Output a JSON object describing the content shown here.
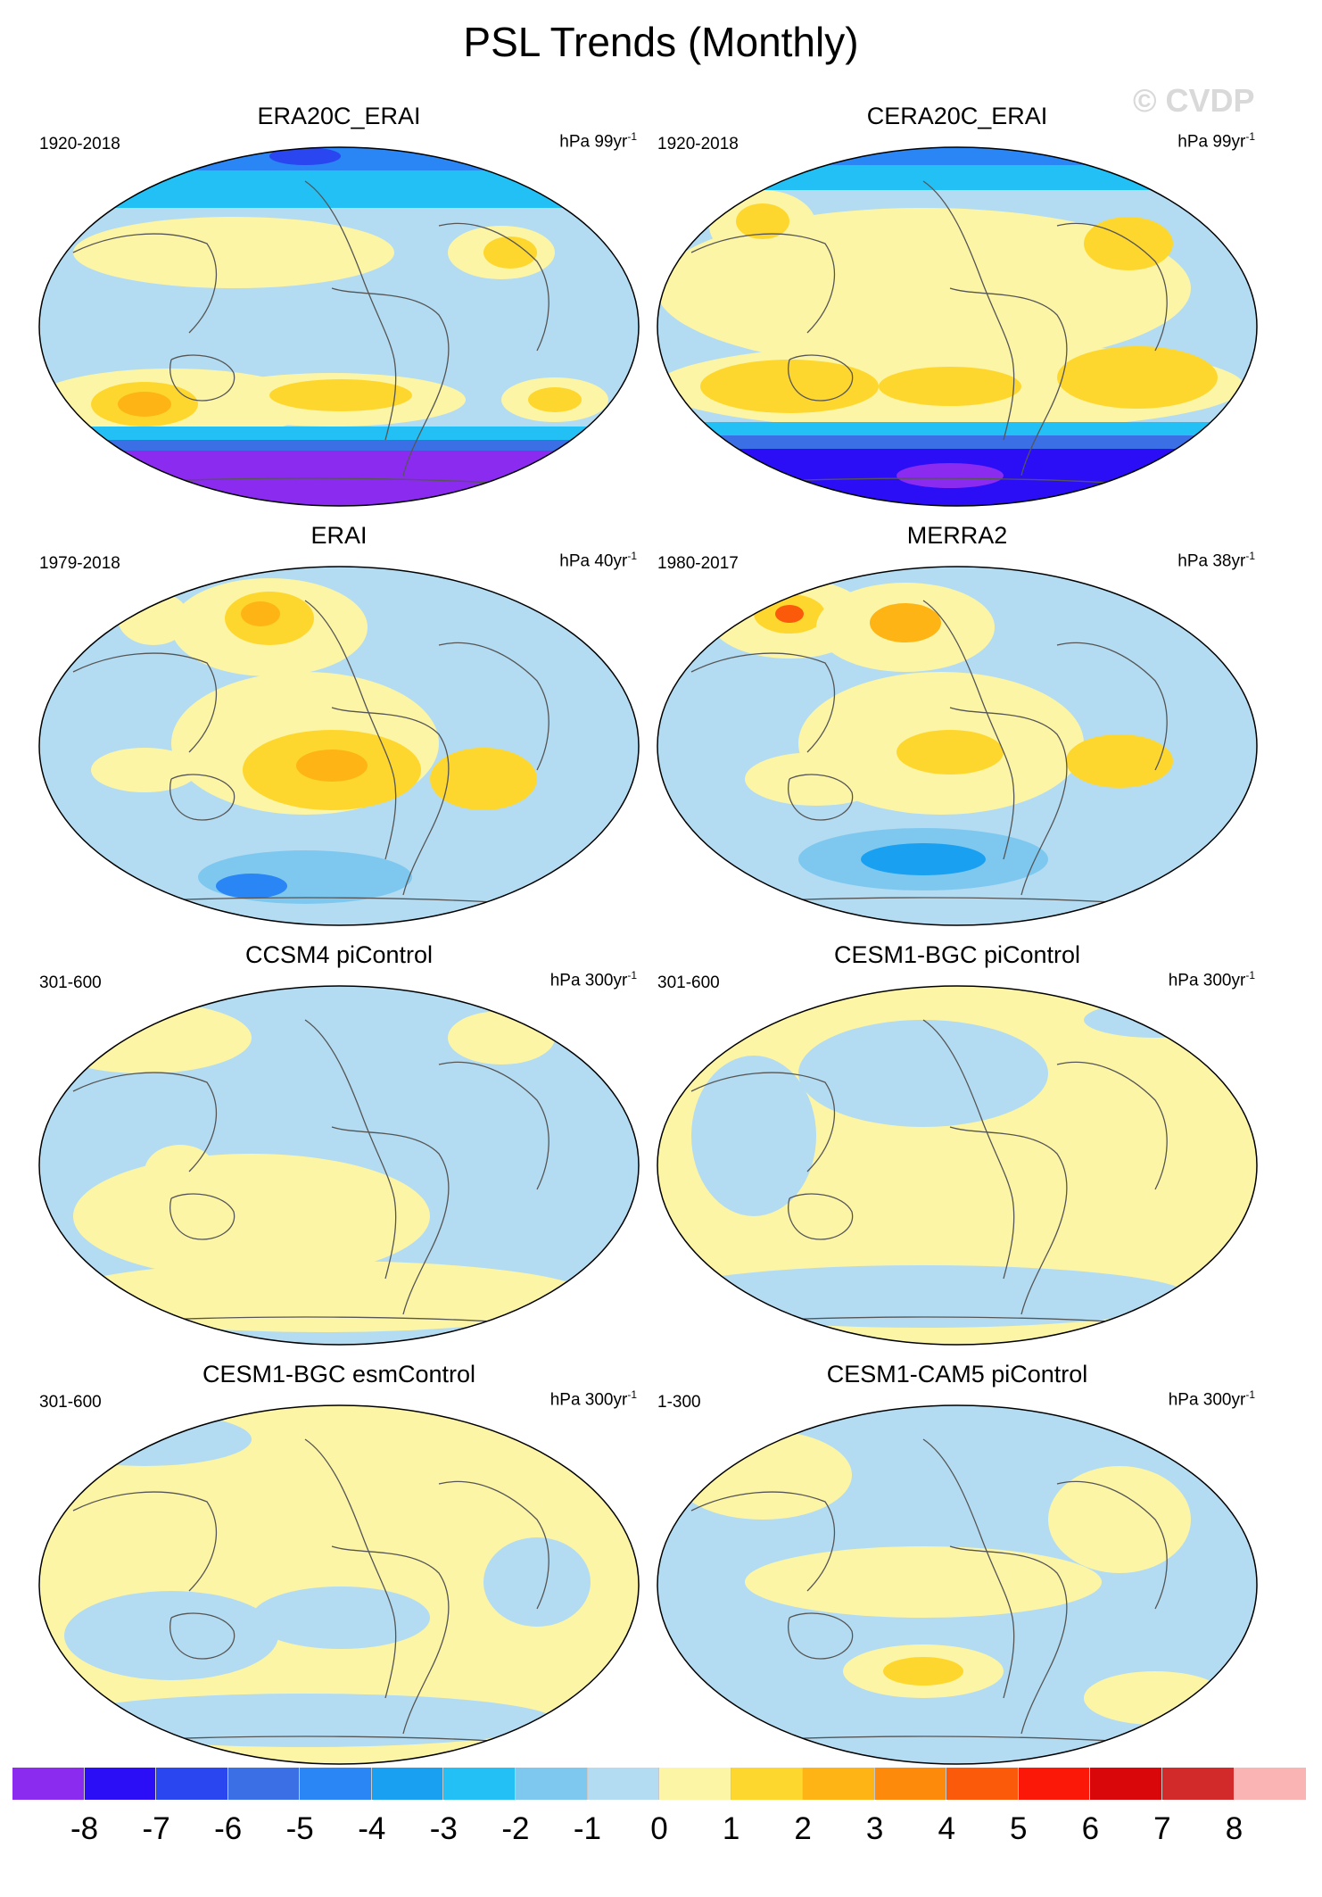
{
  "title": "PSL Trends (Monthly)",
  "watermark": "© CVDP",
  "palette": {
    "ocean_neutral_neg": "#b3dcf2",
    "ocean_neutral_pos": "#fdf5a6",
    "land_line": "#555555"
  },
  "panels": [
    {
      "name": "ERA20C_ERAI",
      "years": "1920-2018",
      "units_prefix": "hPa 99yr",
      "units_exp": "-1",
      "dominant": "mixed-strong"
    },
    {
      "name": "CERA20C_ERAI",
      "years": "1920-2018",
      "units_prefix": "hPa 99yr",
      "units_exp": "-1",
      "dominant": "mixed-strong"
    },
    {
      "name": "ERAI",
      "years": "1979-2018",
      "units_prefix": "hPa 40yr",
      "units_exp": "-1",
      "dominant": "mixed"
    },
    {
      "name": "MERRA2",
      "years": "1980-2017",
      "units_prefix": "hPa 38yr",
      "units_exp": "-1",
      "dominant": "mixed"
    },
    {
      "name": "CCSM4 piControl",
      "years": "301-600",
      "units_prefix": "hPa 300yr",
      "units_exp": "-1",
      "dominant": "weak"
    },
    {
      "name": "CESM1-BGC piControl",
      "years": "301-600",
      "units_prefix": "hPa 300yr",
      "units_exp": "-1",
      "dominant": "weak"
    },
    {
      "name": "CESM1-BGC esmControl",
      "years": "301-600",
      "units_prefix": "hPa 300yr",
      "units_exp": "-1",
      "dominant": "weak"
    },
    {
      "name": "CESM1-CAM5 piControl",
      "years": "1-300",
      "units_prefix": "hPa 300yr",
      "units_exp": "-1",
      "dominant": "weak"
    }
  ],
  "colorbar": {
    "colors": [
      "#8c2bf0",
      "#2b0ef5",
      "#2946f0",
      "#3b6fe6",
      "#2a85f5",
      "#1aa0f0",
      "#22c0f5",
      "#7ec8f0",
      "#b3dcf2",
      "#fdf5a6",
      "#fed72e",
      "#fdb414",
      "#fd8a0b",
      "#fb5a0a",
      "#fb1808",
      "#d9060a",
      "#d22a2a",
      "#fbb4b4"
    ],
    "ticks": [
      "-8",
      "-7",
      "-6",
      "-5",
      "-4",
      "-3",
      "-2",
      "-1",
      "0",
      "1",
      "2",
      "3",
      "4",
      "5",
      "6",
      "7",
      "8"
    ]
  }
}
